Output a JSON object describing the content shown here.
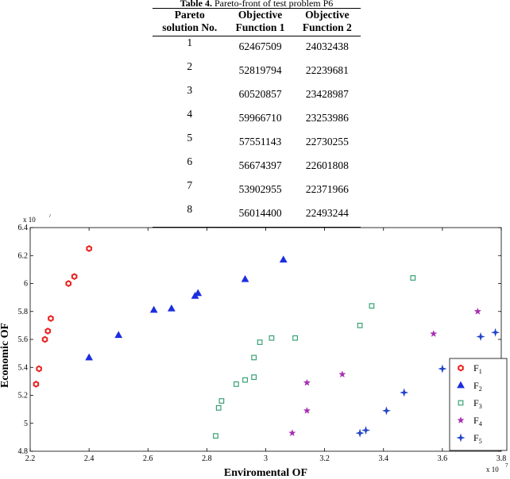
{
  "table": {
    "caption_bold": "Table 4.",
    "caption_rest": " Pareto-front of test problem P6",
    "headers": [
      "Pareto solution No.",
      "Objective Function 1",
      "Objective Function 2"
    ],
    "header_lines": [
      [
        "Pareto",
        "solution No."
      ],
      [
        "Objective",
        "Function 1"
      ],
      [
        "Objective",
        "Function 2"
      ]
    ],
    "rows": [
      [
        "1",
        "62467509",
        "24032438"
      ],
      [
        "2",
        "52819794",
        "22239681"
      ],
      [
        "3",
        "60520857",
        "23428987"
      ],
      [
        "4",
        "59966710",
        "23253986"
      ],
      [
        "5",
        "57551143",
        "22730255"
      ],
      [
        "6",
        "56674397",
        "22601808"
      ],
      [
        "7",
        "53902955",
        "22371966"
      ],
      [
        "8",
        "56014400",
        "22493244"
      ]
    ]
  },
  "chart_data": {
    "type": "scatter",
    "xlabel": "Enviromental OF",
    "ylabel": "Economic OF",
    "x_multiplier": "x 10",
    "x_multiplier_exp": "7",
    "y_multiplier": "x 10",
    "y_multiplier_exp": "7",
    "xlim": [
      2.2,
      3.8
    ],
    "ylim": [
      4.8,
      6.4
    ],
    "x_ticks": [
      "2.2",
      "2.4",
      "2.6",
      "2.8",
      "3",
      "3.2",
      "3.4",
      "3.6",
      "3.8"
    ],
    "y_ticks": [
      "4.8",
      "5",
      "5.2",
      "5.4",
      "5.6",
      "5.8",
      "6",
      "6.2",
      "6.4"
    ],
    "legend_position": "bottom-right",
    "series": [
      {
        "name": "F1",
        "label_main": "F",
        "label_sub": "1",
        "marker": "hexagon",
        "color": "#e8231f",
        "points": [
          [
            2.22,
            5.28
          ],
          [
            2.23,
            5.39
          ],
          [
            2.25,
            5.6
          ],
          [
            2.26,
            5.66
          ],
          [
            2.27,
            5.75
          ],
          [
            2.33,
            6.0
          ],
          [
            2.35,
            6.05
          ],
          [
            2.4,
            6.25
          ]
        ]
      },
      {
        "name": "F2",
        "label_main": "F",
        "label_sub": "2",
        "marker": "triangle",
        "color": "#1c2ee0",
        "points": [
          [
            2.4,
            5.47
          ],
          [
            2.5,
            5.63
          ],
          [
            2.62,
            5.81
          ],
          [
            2.68,
            5.82
          ],
          [
            2.76,
            5.91
          ],
          [
            2.77,
            5.93
          ],
          [
            2.93,
            6.03
          ],
          [
            3.06,
            6.17
          ]
        ]
      },
      {
        "name": "F3",
        "label_main": "F",
        "label_sub": "3",
        "marker": "square",
        "color": "#2a9a6a",
        "points": [
          [
            2.83,
            4.91
          ],
          [
            2.84,
            5.11
          ],
          [
            2.85,
            5.16
          ],
          [
            2.9,
            5.28
          ],
          [
            2.93,
            5.31
          ],
          [
            2.96,
            5.33
          ],
          [
            2.96,
            5.47
          ],
          [
            2.98,
            5.58
          ],
          [
            3.02,
            5.61
          ],
          [
            3.1,
            5.61
          ],
          [
            3.32,
            5.7
          ],
          [
            3.36,
            5.84
          ],
          [
            3.5,
            6.04
          ]
        ]
      },
      {
        "name": "F4",
        "label_main": "F",
        "label_sub": "4",
        "marker": "star",
        "color": "#a72fb2",
        "points": [
          [
            3.09,
            4.93
          ],
          [
            3.14,
            5.09
          ],
          [
            3.14,
            5.29
          ],
          [
            3.26,
            5.35
          ],
          [
            3.57,
            5.64
          ],
          [
            3.72,
            5.8
          ]
        ]
      },
      {
        "name": "F5",
        "label_main": "F",
        "label_sub": "5",
        "marker": "plus-star",
        "color": "#2244c8",
        "points": [
          [
            3.32,
            4.93
          ],
          [
            3.34,
            4.95
          ],
          [
            3.41,
            5.09
          ],
          [
            3.47,
            5.22
          ],
          [
            3.6,
            5.39
          ],
          [
            3.73,
            5.62
          ],
          [
            3.78,
            5.65
          ]
        ]
      }
    ]
  }
}
